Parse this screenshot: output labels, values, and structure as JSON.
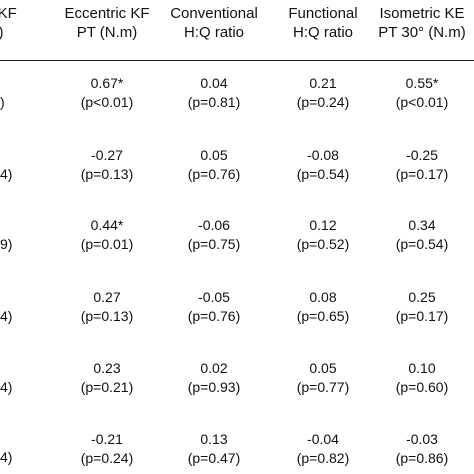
{
  "table": {
    "headers": [
      {
        "line1": "c KF",
        "line2": "m)"
      },
      {
        "line1": "Eccentric KF",
        "line2": "PT (N.m)"
      },
      {
        "line1": "Conventional",
        "line2": "H:Q ratio"
      },
      {
        "line1": "Functional",
        "line2": "H:Q ratio"
      },
      {
        "line1": "Isometric KE",
        "line2": "PT 30° (N.m)"
      }
    ],
    "rows": [
      {
        "edge": ")",
        "cells": [
          {
            "r": "0.67*",
            "p": "(p<0.01)"
          },
          {
            "r": "0.04",
            "p": "(p=0.81)"
          },
          {
            "r": "0.21",
            "p": "(p=0.24)"
          },
          {
            "r": "0.55*",
            "p": "(p<0.01)"
          }
        ]
      },
      {
        "edge": "4)",
        "cells": [
          {
            "r": "-0.27",
            "p": "(p=0.13)"
          },
          {
            "r": "0.05",
            "p": "(p=0.76)"
          },
          {
            "r": "-0.08",
            "p": "(p=0.54)"
          },
          {
            "r": "-0.25",
            "p": "(p=0.17)"
          }
        ]
      },
      {
        "edge": "9)",
        "cells": [
          {
            "r": "0.44*",
            "p": "(p=0.01)"
          },
          {
            "r": "-0.06",
            "p": "(p=0.75)"
          },
          {
            "r": "0.12",
            "p": "(p=0.52)"
          },
          {
            "r": "0.34",
            "p": "(p=0.54)"
          }
        ]
      },
      {
        "edge": "4)",
        "cells": [
          {
            "r": "0.27",
            "p": "(p=0.13)"
          },
          {
            "r": "-0.05",
            "p": "(p=0.76)"
          },
          {
            "r": "0.08",
            "p": "(p=0.65)"
          },
          {
            "r": "0.25",
            "p": "(p=0.17)"
          }
        ]
      },
      {
        "edge": "4)",
        "cells": [
          {
            "r": "0.23",
            "p": "(p=0.21)"
          },
          {
            "r": "0.02",
            "p": "(p=0.93)"
          },
          {
            "r": "0.05",
            "p": "(p=0.77)"
          },
          {
            "r": "0.10",
            "p": "(p=0.60)"
          }
        ]
      },
      {
        "edge": "4)",
        "cells": [
          {
            "r": "-0.21",
            "p": "(p=0.24)"
          },
          {
            "r": "0.13",
            "p": "(p=0.47)"
          },
          {
            "r": "-0.04",
            "p": "(p=0.82)"
          },
          {
            "r": "-0.03",
            "p": "(p=0.86)"
          }
        ]
      }
    ]
  }
}
